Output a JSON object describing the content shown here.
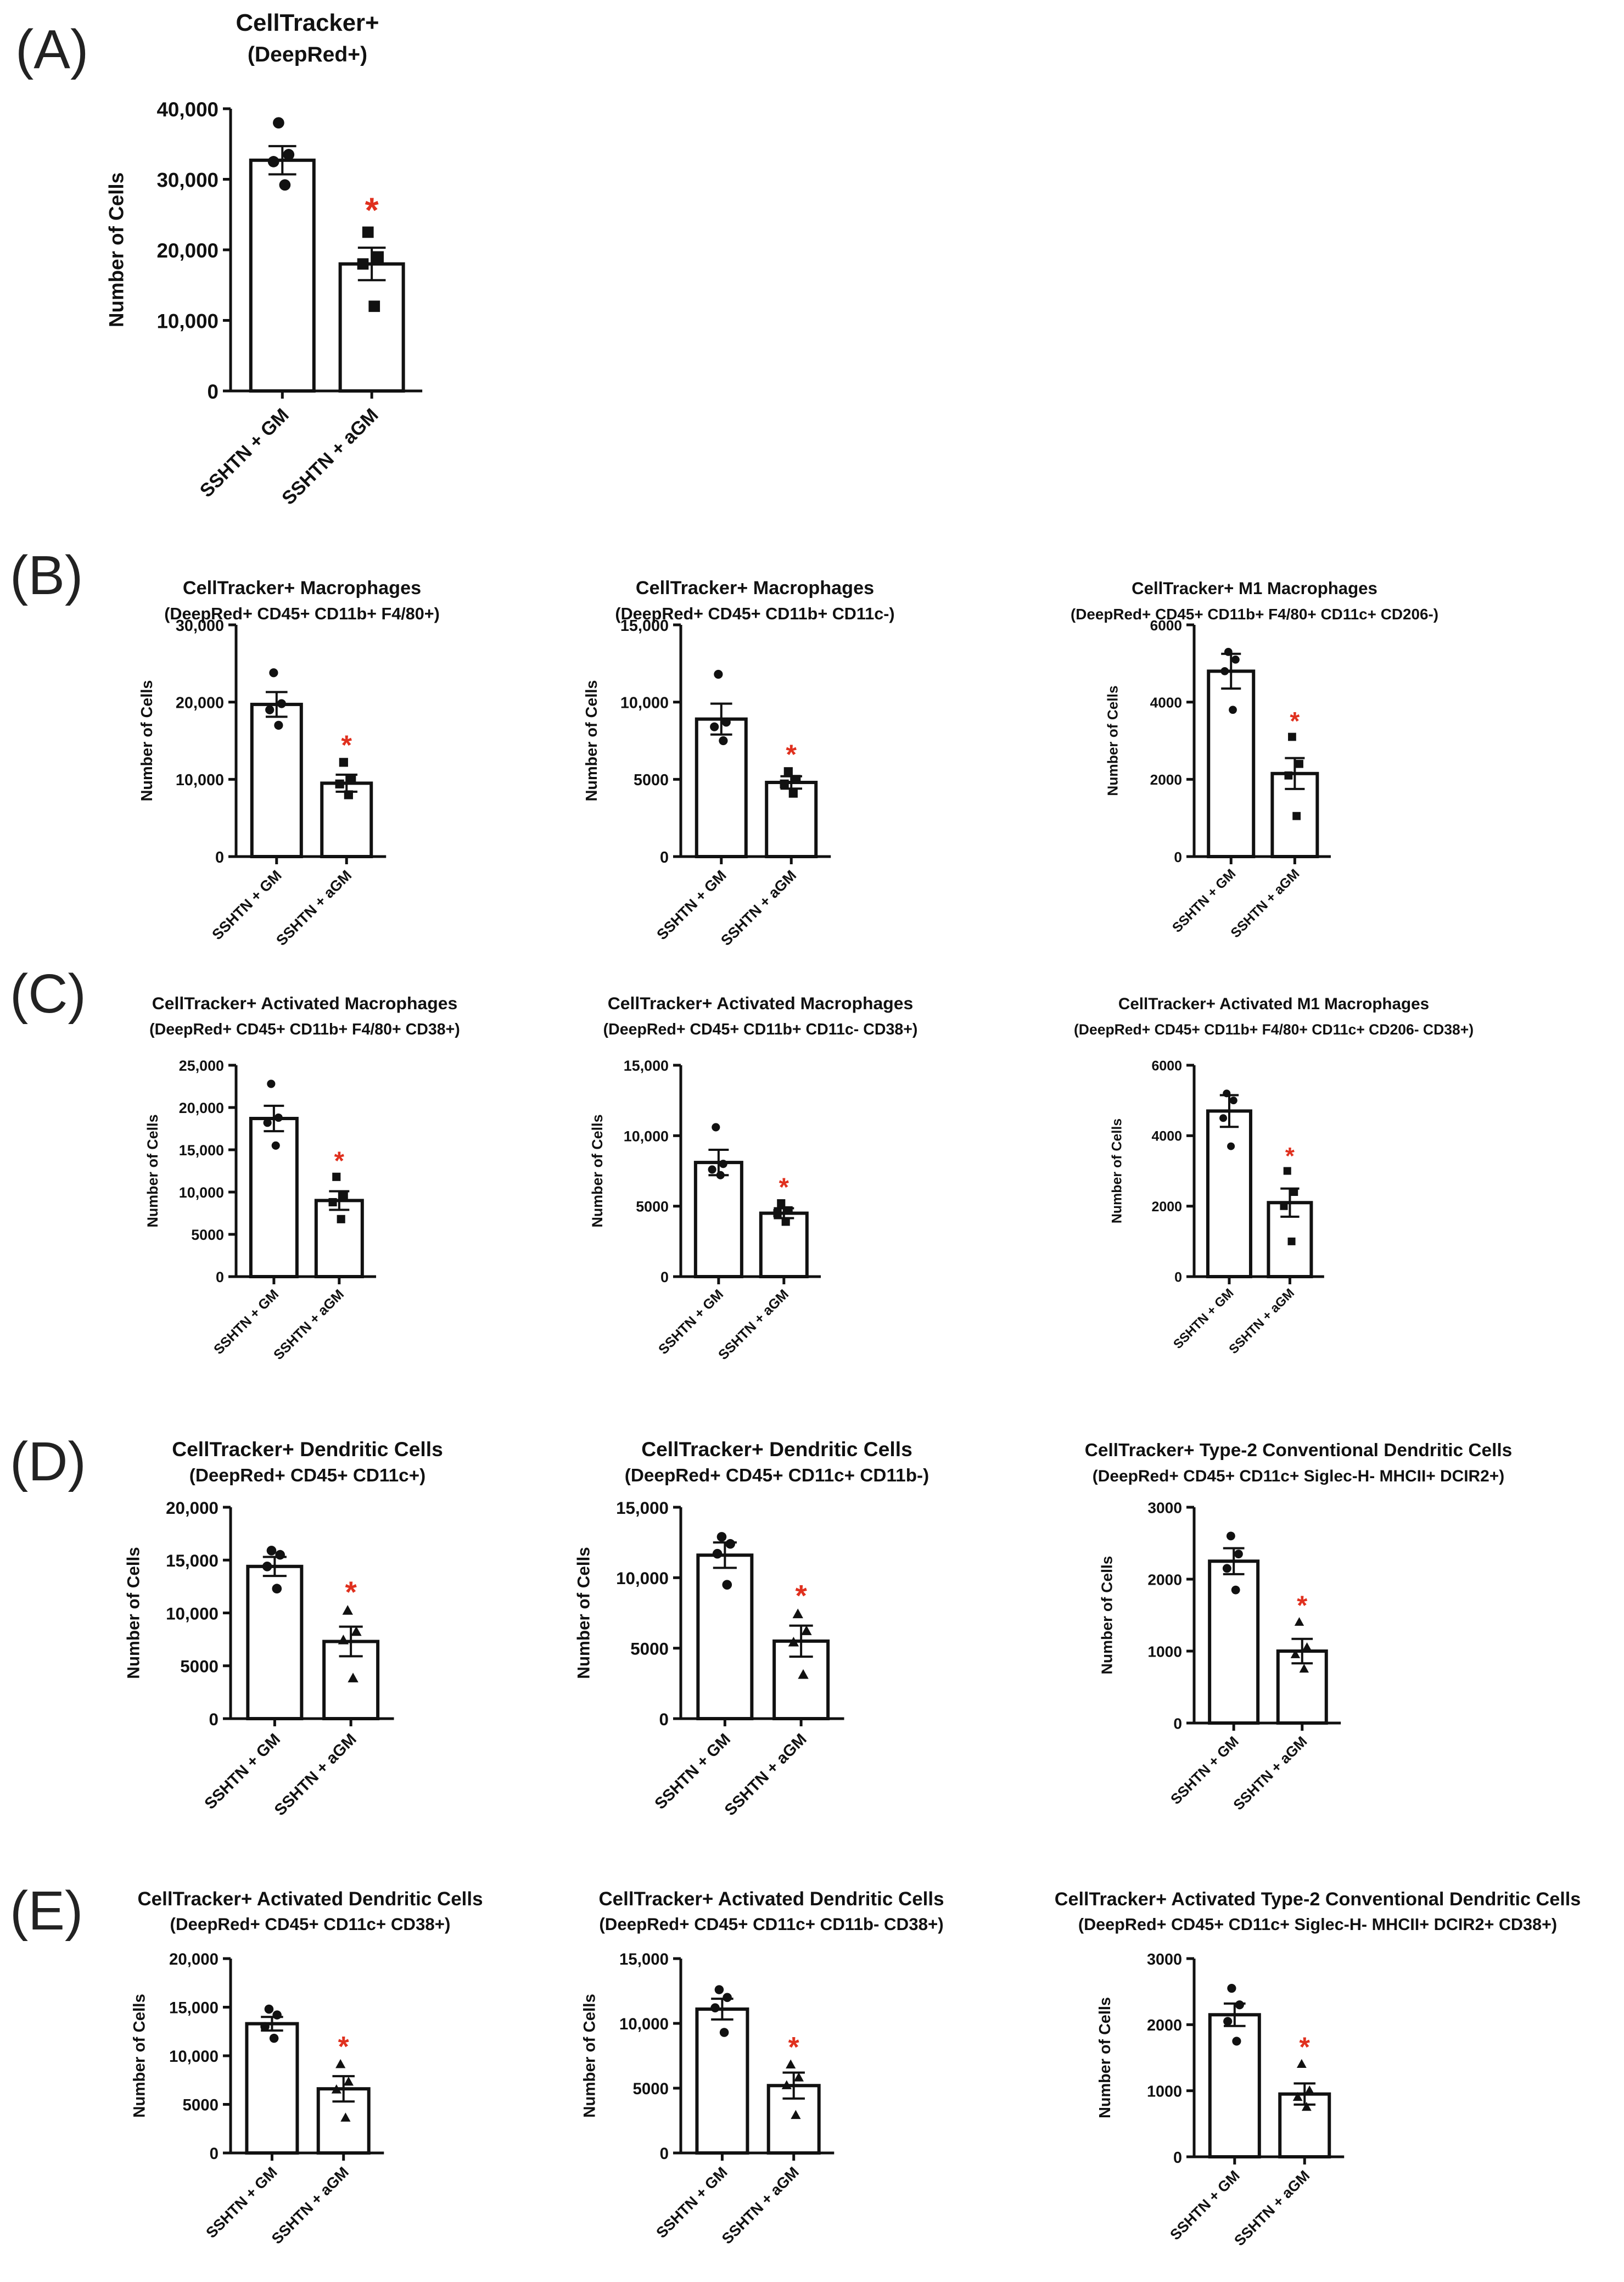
{
  "panels": [
    {
      "label": "(A)"
    },
    {
      "label": "(B)"
    },
    {
      "label": "(C)"
    },
    {
      "label": "(D)"
    },
    {
      "label": "(E)"
    }
  ],
  "colors": {
    "bar_fill": "#ffffff",
    "ink": "#111111",
    "significance": "#e0301e"
  },
  "chart_data": [
    {
      "id": "A",
      "type": "bar",
      "title": "CellTracker+",
      "subtitle": "(DeepRed+)",
      "ylabel": "Number of Cells",
      "xlabel": "",
      "categories": [
        "SSHTN + GM",
        "SSHTN + aGM"
      ],
      "ylim": [
        0,
        40000
      ],
      "yticks": [
        "0",
        "10,000",
        "20,000",
        "30,000",
        "40,000"
      ],
      "ytick_values": [
        0,
        10000,
        20000,
        30000,
        40000
      ],
      "values": [
        32700,
        18000
      ],
      "sem": [
        2000,
        2300
      ],
      "points": [
        [
          38000,
          33500,
          32500,
          29200
        ],
        [
          22500,
          19000,
          18000,
          12000
        ]
      ],
      "markers": [
        "circle",
        "square"
      ],
      "significance": "*"
    },
    {
      "id": "B1",
      "type": "bar",
      "title": "CellTracker+ Macrophages",
      "subtitle": "(DeepRed+ CD45+ CD11b+ F4/80+)",
      "ylabel": "Number of Cells",
      "xlabel": "",
      "categories": [
        "SSHTN + GM",
        "SSHTN + aGM"
      ],
      "ylim": [
        0,
        30000
      ],
      "yticks": [
        "0",
        "10,000",
        "20,000",
        "30,000"
      ],
      "ytick_values": [
        0,
        10000,
        20000,
        30000
      ],
      "values": [
        19700,
        9500
      ],
      "sem": [
        1600,
        1100
      ],
      "points": [
        [
          23800,
          19800,
          19000,
          17000
        ],
        [
          12200,
          10000,
          9400,
          8000
        ]
      ],
      "markers": [
        "circle",
        "square"
      ],
      "significance": "*"
    },
    {
      "id": "B2",
      "type": "bar",
      "title": "CellTracker+ Macrophages",
      "subtitle": "(DeepRed+ CD45+  CD11b+ CD11c-)",
      "ylabel": "Number of Cells",
      "xlabel": "",
      "categories": [
        "SSHTN + GM",
        "SSHTN + aGM"
      ],
      "ylim": [
        0,
        15000
      ],
      "yticks": [
        "0",
        "5000",
        "10,000",
        "15,000"
      ],
      "ytick_values": [
        0,
        5000,
        10000,
        15000
      ],
      "values": [
        8900,
        4800
      ],
      "sem": [
        1000,
        400
      ],
      "points": [
        [
          11800,
          8700,
          8400,
          7500
        ],
        [
          5500,
          5000,
          4700,
          4100
        ]
      ],
      "markers": [
        "circle",
        "square"
      ],
      "significance": "*"
    },
    {
      "id": "B3",
      "type": "bar",
      "title": "CellTracker+ M1 Macrophages",
      "subtitle": "(DeepRed+ CD45+ CD11b+ F4/80+ CD11c+ CD206-)",
      "ylabel": "Number of Cells",
      "xlabel": "",
      "categories": [
        "SSHTN + GM",
        "SSHTN + aGM"
      ],
      "ylim": [
        0,
        6000
      ],
      "yticks": [
        "0",
        "2000",
        "4000",
        "6000"
      ],
      "ytick_values": [
        0,
        2000,
        4000,
        6000
      ],
      "values": [
        4800,
        2150
      ],
      "sem": [
        450,
        400
      ],
      "points": [
        [
          5300,
          5100,
          4800,
          3800
        ],
        [
          3100,
          2400,
          2100,
          1050
        ]
      ],
      "markers": [
        "circle",
        "square"
      ],
      "significance": "*"
    },
    {
      "id": "C1",
      "type": "bar",
      "title": "CellTracker+ Activated Macrophages",
      "subtitle": "(DeepRed+ CD45+ CD11b+ F4/80+ CD38+)",
      "ylabel": "Number of Cells",
      "xlabel": "",
      "categories": [
        "SSHTN + GM",
        "SSHTN + aGM"
      ],
      "ylim": [
        0,
        25000
      ],
      "yticks": [
        "0",
        "5000",
        "10,000",
        "15,000",
        "20,000",
        "25,000"
      ],
      "ytick_values": [
        0,
        5000,
        10000,
        15000,
        20000,
        25000
      ],
      "values": [
        18700,
        9000
      ],
      "sem": [
        1500,
        1100
      ],
      "points": [
        [
          22800,
          18800,
          18200,
          15500
        ],
        [
          11800,
          9600,
          8800,
          6800
        ]
      ],
      "markers": [
        "circle",
        "square"
      ],
      "significance": "*"
    },
    {
      "id": "C2",
      "type": "bar",
      "title": "CellTracker+ Activated Macrophages",
      "subtitle": "(DeepRed+ CD45+ CD11b+ CD11c- CD38+)",
      "ylabel": "Number of Cells",
      "xlabel": "",
      "categories": [
        "SSHTN + GM",
        "SSHTN + aGM"
      ],
      "ylim": [
        0,
        15000
      ],
      "yticks": [
        "0",
        "5000",
        "10,000",
        "15,000"
      ],
      "ytick_values": [
        0,
        5000,
        10000,
        15000
      ],
      "values": [
        8100,
        4500
      ],
      "sem": [
        900,
        350
      ],
      "points": [
        [
          10600,
          8000,
          7600,
          7200
        ],
        [
          5200,
          4700,
          4500,
          3900
        ]
      ],
      "markers": [
        "circle",
        "square"
      ],
      "significance": "*"
    },
    {
      "id": "C3",
      "type": "bar",
      "title": "CellTracker+ Activated M1 Macrophages",
      "subtitle": "(DeepRed+ CD45+ CD11b+ F4/80+ CD11c+ CD206- CD38+)",
      "ylabel": "Number of Cells",
      "xlabel": "",
      "categories": [
        "SSHTN + GM",
        "SSHTN + aGM"
      ],
      "ylim": [
        0,
        6000
      ],
      "yticks": [
        "0",
        "2000",
        "4000",
        "6000"
      ],
      "ytick_values": [
        0,
        2000,
        4000,
        6000
      ],
      "values": [
        4700,
        2100
      ],
      "sem": [
        450,
        400
      ],
      "points": [
        [
          5200,
          5000,
          4500,
          3700
        ],
        [
          3000,
          2400,
          2000,
          1000
        ]
      ],
      "markers": [
        "circle",
        "square"
      ],
      "significance": "*"
    },
    {
      "id": "D1",
      "type": "bar",
      "title": "CellTracker+ Dendritic Cells",
      "subtitle": "(DeepRed+ CD45+ CD11c+)",
      "ylabel": "Number of Cells",
      "xlabel": "",
      "categories": [
        "SSHTN + GM",
        "SSHTN + aGM"
      ],
      "ylim": [
        0,
        20000
      ],
      "yticks": [
        "0",
        "5000",
        "10,000",
        "15,000",
        "20,000"
      ],
      "ytick_values": [
        0,
        5000,
        10000,
        15000,
        20000
      ],
      "values": [
        14400,
        7300
      ],
      "sem": [
        900,
        1400
      ],
      "points": [
        [
          15900,
          15500,
          14400,
          12300
        ],
        [
          10200,
          8200,
          7400,
          3800
        ]
      ],
      "markers": [
        "circle",
        "triangle"
      ],
      "significance": "*"
    },
    {
      "id": "D2",
      "type": "bar",
      "title": "CellTracker+ Dendritic Cells",
      "subtitle": "(DeepRed+ CD45+ CD11c+ CD11b-)",
      "ylabel": "Number of Cells",
      "xlabel": "",
      "categories": [
        "SSHTN + GM",
        "SSHTN + aGM"
      ],
      "ylim": [
        0,
        15000
      ],
      "yticks": [
        "0",
        "5000",
        "10,000",
        "15,000"
      ],
      "ytick_values": [
        0,
        5000,
        10000,
        15000
      ],
      "values": [
        11600,
        5500
      ],
      "sem": [
        900,
        1100
      ],
      "points": [
        [
          12900,
          12400,
          11700,
          9500
        ],
        [
          7400,
          6200,
          5400,
          3100
        ]
      ],
      "markers": [
        "circle",
        "triangle"
      ],
      "significance": "*"
    },
    {
      "id": "D3",
      "type": "bar",
      "title": "CellTracker+ Type-2 Conventional Dendritic Cells",
      "subtitle": "(DeepRed+ CD45+ CD11c+ Siglec-H- MHCII+ DCIR2+)",
      "ylabel": "Number of Cells",
      "xlabel": "",
      "categories": [
        "SSHTN + GM",
        "SSHTN + aGM"
      ],
      "ylim": [
        0,
        3000
      ],
      "yticks": [
        "0",
        "1000",
        "2000",
        "3000"
      ],
      "ytick_values": [
        0,
        1000,
        2000,
        3000
      ],
      "values": [
        2250,
        1000
      ],
      "sem": [
        180,
        170
      ],
      "points": [
        [
          2600,
          2350,
          2150,
          1850
        ],
        [
          1400,
          1050,
          950,
          750
        ]
      ],
      "markers": [
        "circle",
        "triangle"
      ],
      "significance": "*"
    },
    {
      "id": "E1",
      "type": "bar",
      "title": "CellTracker+ Activated Dendritic Cells",
      "subtitle": "(DeepRed+ CD45+ CD11c+ CD38+)",
      "ylabel": "Number of Cells",
      "xlabel": "",
      "categories": [
        "SSHTN + GM",
        "SSHTN + aGM"
      ],
      "ylim": [
        0,
        20000
      ],
      "yticks": [
        "0",
        "5000",
        "10,000",
        "15,000",
        "20,000"
      ],
      "ytick_values": [
        0,
        5000,
        10000,
        15000,
        20000
      ],
      "values": [
        13300,
        6600
      ],
      "sem": [
        700,
        1300
      ],
      "points": [
        [
          14800,
          14200,
          13000,
          11800
        ],
        [
          9100,
          7300,
          6500,
          3600
        ]
      ],
      "markers": [
        "circle",
        "triangle"
      ],
      "significance": "*"
    },
    {
      "id": "E2",
      "type": "bar",
      "title": "CellTracker+ Activated Dendritic Cells",
      "subtitle": "(DeepRed+ CD45+ CD11c+ CD11b- CD38+)",
      "ylabel": "Number of Cells",
      "xlabel": "",
      "categories": [
        "SSHTN + GM",
        "SSHTN + aGM"
      ],
      "ylim": [
        0,
        15000
      ],
      "yticks": [
        "0",
        "5000",
        "10,000",
        "15,000"
      ],
      "ytick_values": [
        0,
        5000,
        10000,
        15000
      ],
      "values": [
        11100,
        5200
      ],
      "sem": [
        800,
        1000
      ],
      "points": [
        [
          12600,
          12000,
          11200,
          9300
        ],
        [
          6800,
          5800,
          5200,
          2900
        ]
      ],
      "markers": [
        "circle",
        "triangle"
      ],
      "significance": "*"
    },
    {
      "id": "E3",
      "type": "bar",
      "title": "CellTracker+ Activated Type-2 Conventional Dendritic Cells",
      "subtitle": "(DeepRed+ CD45+ CD11c+ Siglec-H- MHCII+ DCIR2+ CD38+)",
      "ylabel": "Number of Cells",
      "xlabel": "",
      "categories": [
        "SSHTN + GM",
        "SSHTN + aGM"
      ],
      "ylim": [
        0,
        3000
      ],
      "yticks": [
        "0",
        "1000",
        "2000",
        "3000"
      ],
      "ytick_values": [
        0,
        1000,
        2000,
        3000
      ],
      "values": [
        2150,
        950
      ],
      "sem": [
        170,
        160
      ],
      "points": [
        [
          2550,
          2300,
          2050,
          1750
        ],
        [
          1400,
          1000,
          900,
          750
        ]
      ],
      "markers": [
        "circle",
        "triangle"
      ],
      "significance": "*"
    }
  ]
}
